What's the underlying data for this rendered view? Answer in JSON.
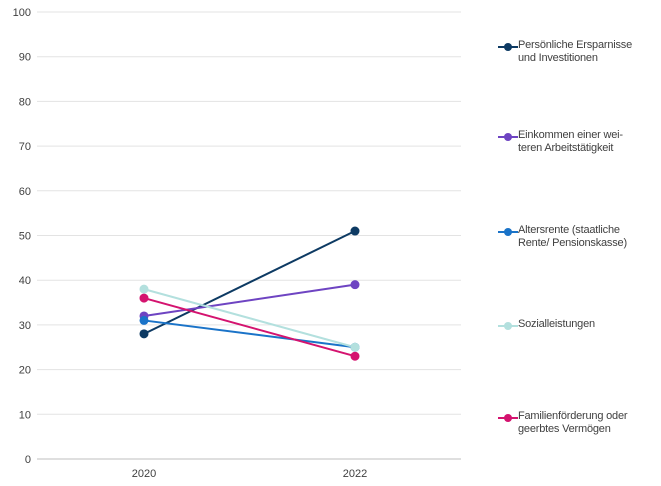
{
  "chart_data": {
    "type": "line",
    "title": "",
    "xlabel": "",
    "ylabel": "",
    "categories": [
      "2020",
      "2022"
    ],
    "ylim": [
      0,
      100
    ],
    "yticks": [
      0,
      10,
      20,
      30,
      40,
      50,
      60,
      70,
      80,
      90,
      100
    ],
    "grid": true,
    "legend_position": "right",
    "series": [
      {
        "name": "Persönliche Ersparnisse und Investitionen",
        "label_lines": [
          "Persönliche Ersparnisse",
          "und Investitionen"
        ],
        "color": "#0d3a63",
        "values": [
          28,
          51
        ]
      },
      {
        "name": "Einkommen einer weiteren Arbeitstätigkeit",
        "label_lines": [
          "Einkommen einer wei-",
          "teren Arbeitstätigkeit"
        ],
        "color": "#6e44c2",
        "values": [
          32,
          39
        ]
      },
      {
        "name": "Altersrente (staatliche Rente/ Pensionskasse)",
        "label_lines": [
          "Altersrente (staatliche",
          "Rente/ Pensionskasse)"
        ],
        "color": "#1a73c8",
        "values": [
          31,
          25
        ]
      },
      {
        "name": "Sozialleistungen",
        "label_lines": [
          "Sozialleistungen"
        ],
        "color": "#b3e0de",
        "values": [
          38,
          25
        ]
      },
      {
        "name": "Familienförderung oder geerbtes Vermögen",
        "label_lines": [
          "Familienförderung oder",
          "geerbtes Vermögen"
        ],
        "color": "#d4136f",
        "values": [
          36,
          23
        ]
      }
    ]
  }
}
